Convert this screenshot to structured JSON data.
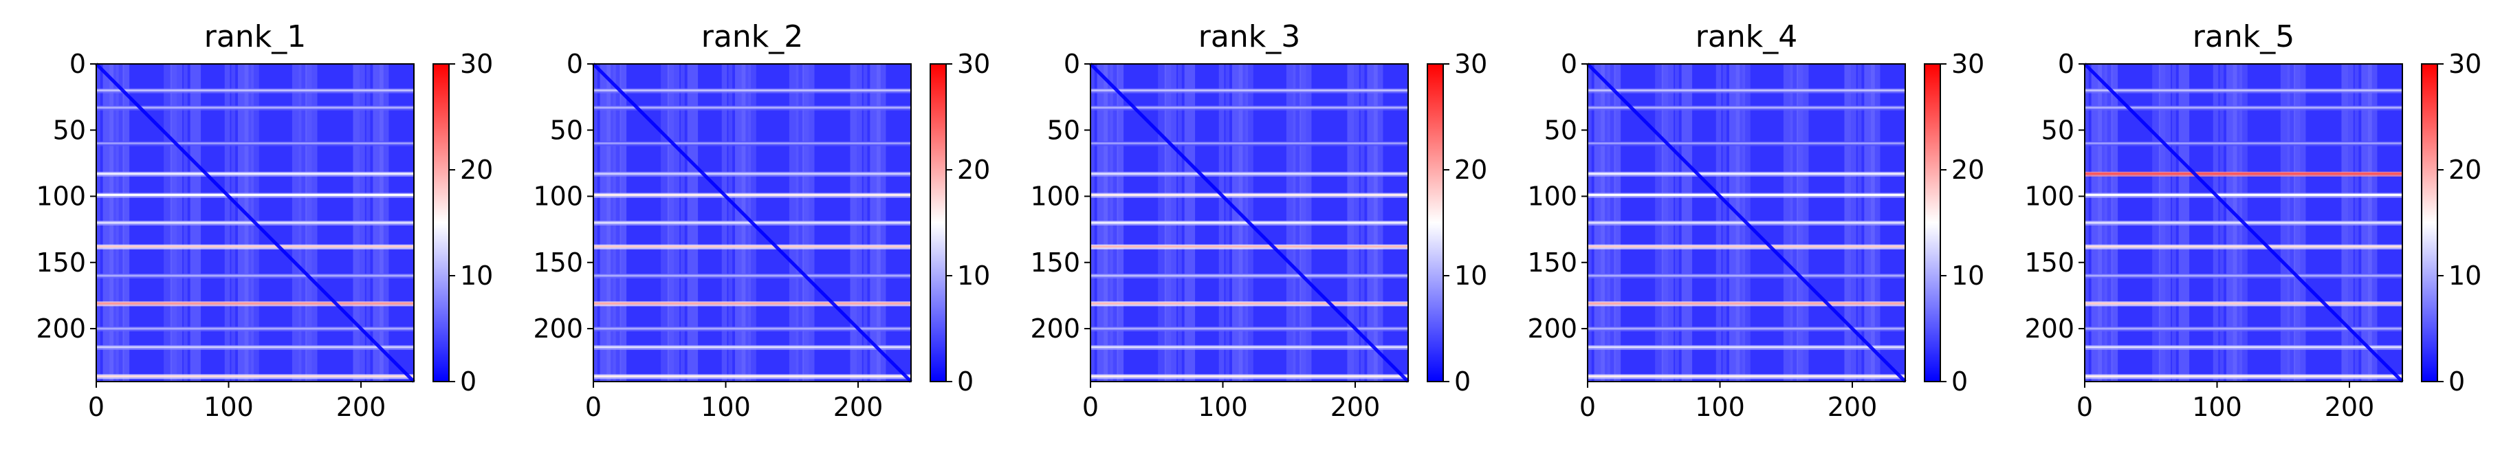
{
  "chart_data": [
    {
      "type": "heatmap",
      "title": "rank_1",
      "x_ticks": [
        0,
        100,
        200
      ],
      "y_ticks": [
        0,
        50,
        100,
        150,
        200
      ],
      "xlim": [
        0,
        240
      ],
      "ylim": [
        240,
        0
      ],
      "colorbar": {
        "ticks": [
          0,
          10,
          20,
          30
        ],
        "vmin": 0,
        "vmax": 30,
        "colormap": "bwr"
      },
      "matrix_size": 240,
      "diagonal": "low values along the main diagonal",
      "bright_rows": [
        {
          "row": 20,
          "value": 11
        },
        {
          "row": 33,
          "value": 10
        },
        {
          "row": 60,
          "value": 9
        },
        {
          "row": 83,
          "value": 14
        },
        {
          "row": 99,
          "value": 15
        },
        {
          "row": 120,
          "value": 13
        },
        {
          "row": 138,
          "value": 18
        },
        {
          "row": 160,
          "value": 10
        },
        {
          "row": 181,
          "value": 21
        },
        {
          "row": 200,
          "value": 10
        },
        {
          "row": 214,
          "value": 12
        },
        {
          "row": 236,
          "value": 17
        }
      ]
    },
    {
      "type": "heatmap",
      "title": "rank_2",
      "x_ticks": [
        0,
        100,
        200
      ],
      "y_ticks": [
        0,
        50,
        100,
        150,
        200
      ],
      "xlim": [
        0,
        240
      ],
      "ylim": [
        240,
        0
      ],
      "colorbar": {
        "ticks": [
          0,
          10,
          20,
          30
        ],
        "vmin": 0,
        "vmax": 30,
        "colormap": "bwr"
      },
      "matrix_size": 240,
      "diagonal": "low values along the main diagonal",
      "bright_rows": [
        {
          "row": 20,
          "value": 11
        },
        {
          "row": 33,
          "value": 10
        },
        {
          "row": 60,
          "value": 9
        },
        {
          "row": 83,
          "value": 12
        },
        {
          "row": 99,
          "value": 16
        },
        {
          "row": 120,
          "value": 13
        },
        {
          "row": 138,
          "value": 18
        },
        {
          "row": 160,
          "value": 10
        },
        {
          "row": 181,
          "value": 20
        },
        {
          "row": 200,
          "value": 10
        },
        {
          "row": 214,
          "value": 13
        },
        {
          "row": 236,
          "value": 16
        }
      ]
    },
    {
      "type": "heatmap",
      "title": "rank_3",
      "x_ticks": [
        0,
        100,
        200
      ],
      "y_ticks": [
        0,
        50,
        100,
        150,
        200
      ],
      "xlim": [
        0,
        240
      ],
      "ylim": [
        240,
        0
      ],
      "colorbar": {
        "ticks": [
          0,
          10,
          20,
          30
        ],
        "vmin": 0,
        "vmax": 30,
        "colormap": "bwr"
      },
      "matrix_size": 240,
      "diagonal": "low values along the main diagonal",
      "bright_rows": [
        {
          "row": 20,
          "value": 11
        },
        {
          "row": 33,
          "value": 10
        },
        {
          "row": 60,
          "value": 9
        },
        {
          "row": 83,
          "value": 13
        },
        {
          "row": 99,
          "value": 16
        },
        {
          "row": 120,
          "value": 14
        },
        {
          "row": 138,
          "value": 19
        },
        {
          "row": 160,
          "value": 11
        },
        {
          "row": 181,
          "value": 19
        },
        {
          "row": 200,
          "value": 10
        },
        {
          "row": 214,
          "value": 13
        },
        {
          "row": 236,
          "value": 16
        }
      ]
    },
    {
      "type": "heatmap",
      "title": "rank_4",
      "x_ticks": [
        0,
        100,
        200
      ],
      "y_ticks": [
        0,
        50,
        100,
        150,
        200
      ],
      "xlim": [
        0,
        240
      ],
      "ylim": [
        240,
        0
      ],
      "colorbar": {
        "ticks": [
          0,
          10,
          20,
          30
        ],
        "vmin": 0,
        "vmax": 30,
        "colormap": "bwr"
      },
      "matrix_size": 240,
      "diagonal": "low values along the main diagonal",
      "bright_rows": [
        {
          "row": 20,
          "value": 11
        },
        {
          "row": 33,
          "value": 10
        },
        {
          "row": 60,
          "value": 9
        },
        {
          "row": 83,
          "value": 14
        },
        {
          "row": 99,
          "value": 15
        },
        {
          "row": 120,
          "value": 13
        },
        {
          "row": 138,
          "value": 18
        },
        {
          "row": 160,
          "value": 10
        },
        {
          "row": 181,
          "value": 20
        },
        {
          "row": 200,
          "value": 10
        },
        {
          "row": 214,
          "value": 13
        },
        {
          "row": 236,
          "value": 16
        }
      ]
    },
    {
      "type": "heatmap",
      "title": "rank_5",
      "x_ticks": [
        0,
        100,
        200
      ],
      "y_ticks": [
        0,
        50,
        100,
        150,
        200
      ],
      "xlim": [
        0,
        240
      ],
      "ylim": [
        240,
        0
      ],
      "colorbar": {
        "ticks": [
          0,
          10,
          20,
          30
        ],
        "vmin": 0,
        "vmax": 30,
        "colormap": "bwr"
      },
      "matrix_size": 240,
      "diagonal": "low values along the main diagonal",
      "bright_rows": [
        {
          "row": 20,
          "value": 11
        },
        {
          "row": 33,
          "value": 10
        },
        {
          "row": 60,
          "value": 9
        },
        {
          "row": 83,
          "value": 25
        },
        {
          "row": 99,
          "value": 15
        },
        {
          "row": 120,
          "value": 13
        },
        {
          "row": 138,
          "value": 17
        },
        {
          "row": 160,
          "value": 10
        },
        {
          "row": 181,
          "value": 18
        },
        {
          "row": 200,
          "value": 10
        },
        {
          "row": 214,
          "value": 13
        },
        {
          "row": 236,
          "value": 16
        }
      ]
    }
  ]
}
